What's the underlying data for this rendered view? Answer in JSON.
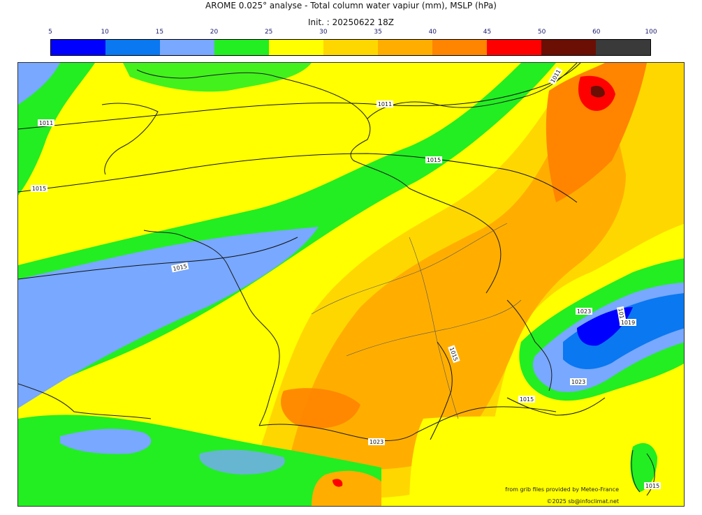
{
  "title": "AROME 0.025° analyse - Total column water vapiur (mm), MSLP (hPa)",
  "subtitle": "Init. : 20250622 18Z",
  "colorbar": {
    "ticks": [
      "5",
      "10",
      "15",
      "20",
      "25",
      "30",
      "35",
      "40",
      "45",
      "50",
      "60",
      "100"
    ],
    "colors": [
      "#0000ff",
      "#0a78f0",
      "#78a8ff",
      "#22ee22",
      "#ffff00",
      "#ffd700",
      "#ffae00",
      "#ff8400",
      "#ff0000",
      "#6b0f05",
      "#3a3a3a"
    ]
  },
  "isobars": {
    "labels": [
      "1011",
      "1011",
      "1015",
      "1011",
      "1015",
      "1015",
      "1015",
      "1015",
      "1023",
      "1023",
      "1015",
      "1019",
      "1015",
      "1023",
      "1015"
    ]
  },
  "credits": {
    "line1": "from grib files provided by Meteo-France",
    "line2": "©2025 sb@infoclimat.net"
  }
}
